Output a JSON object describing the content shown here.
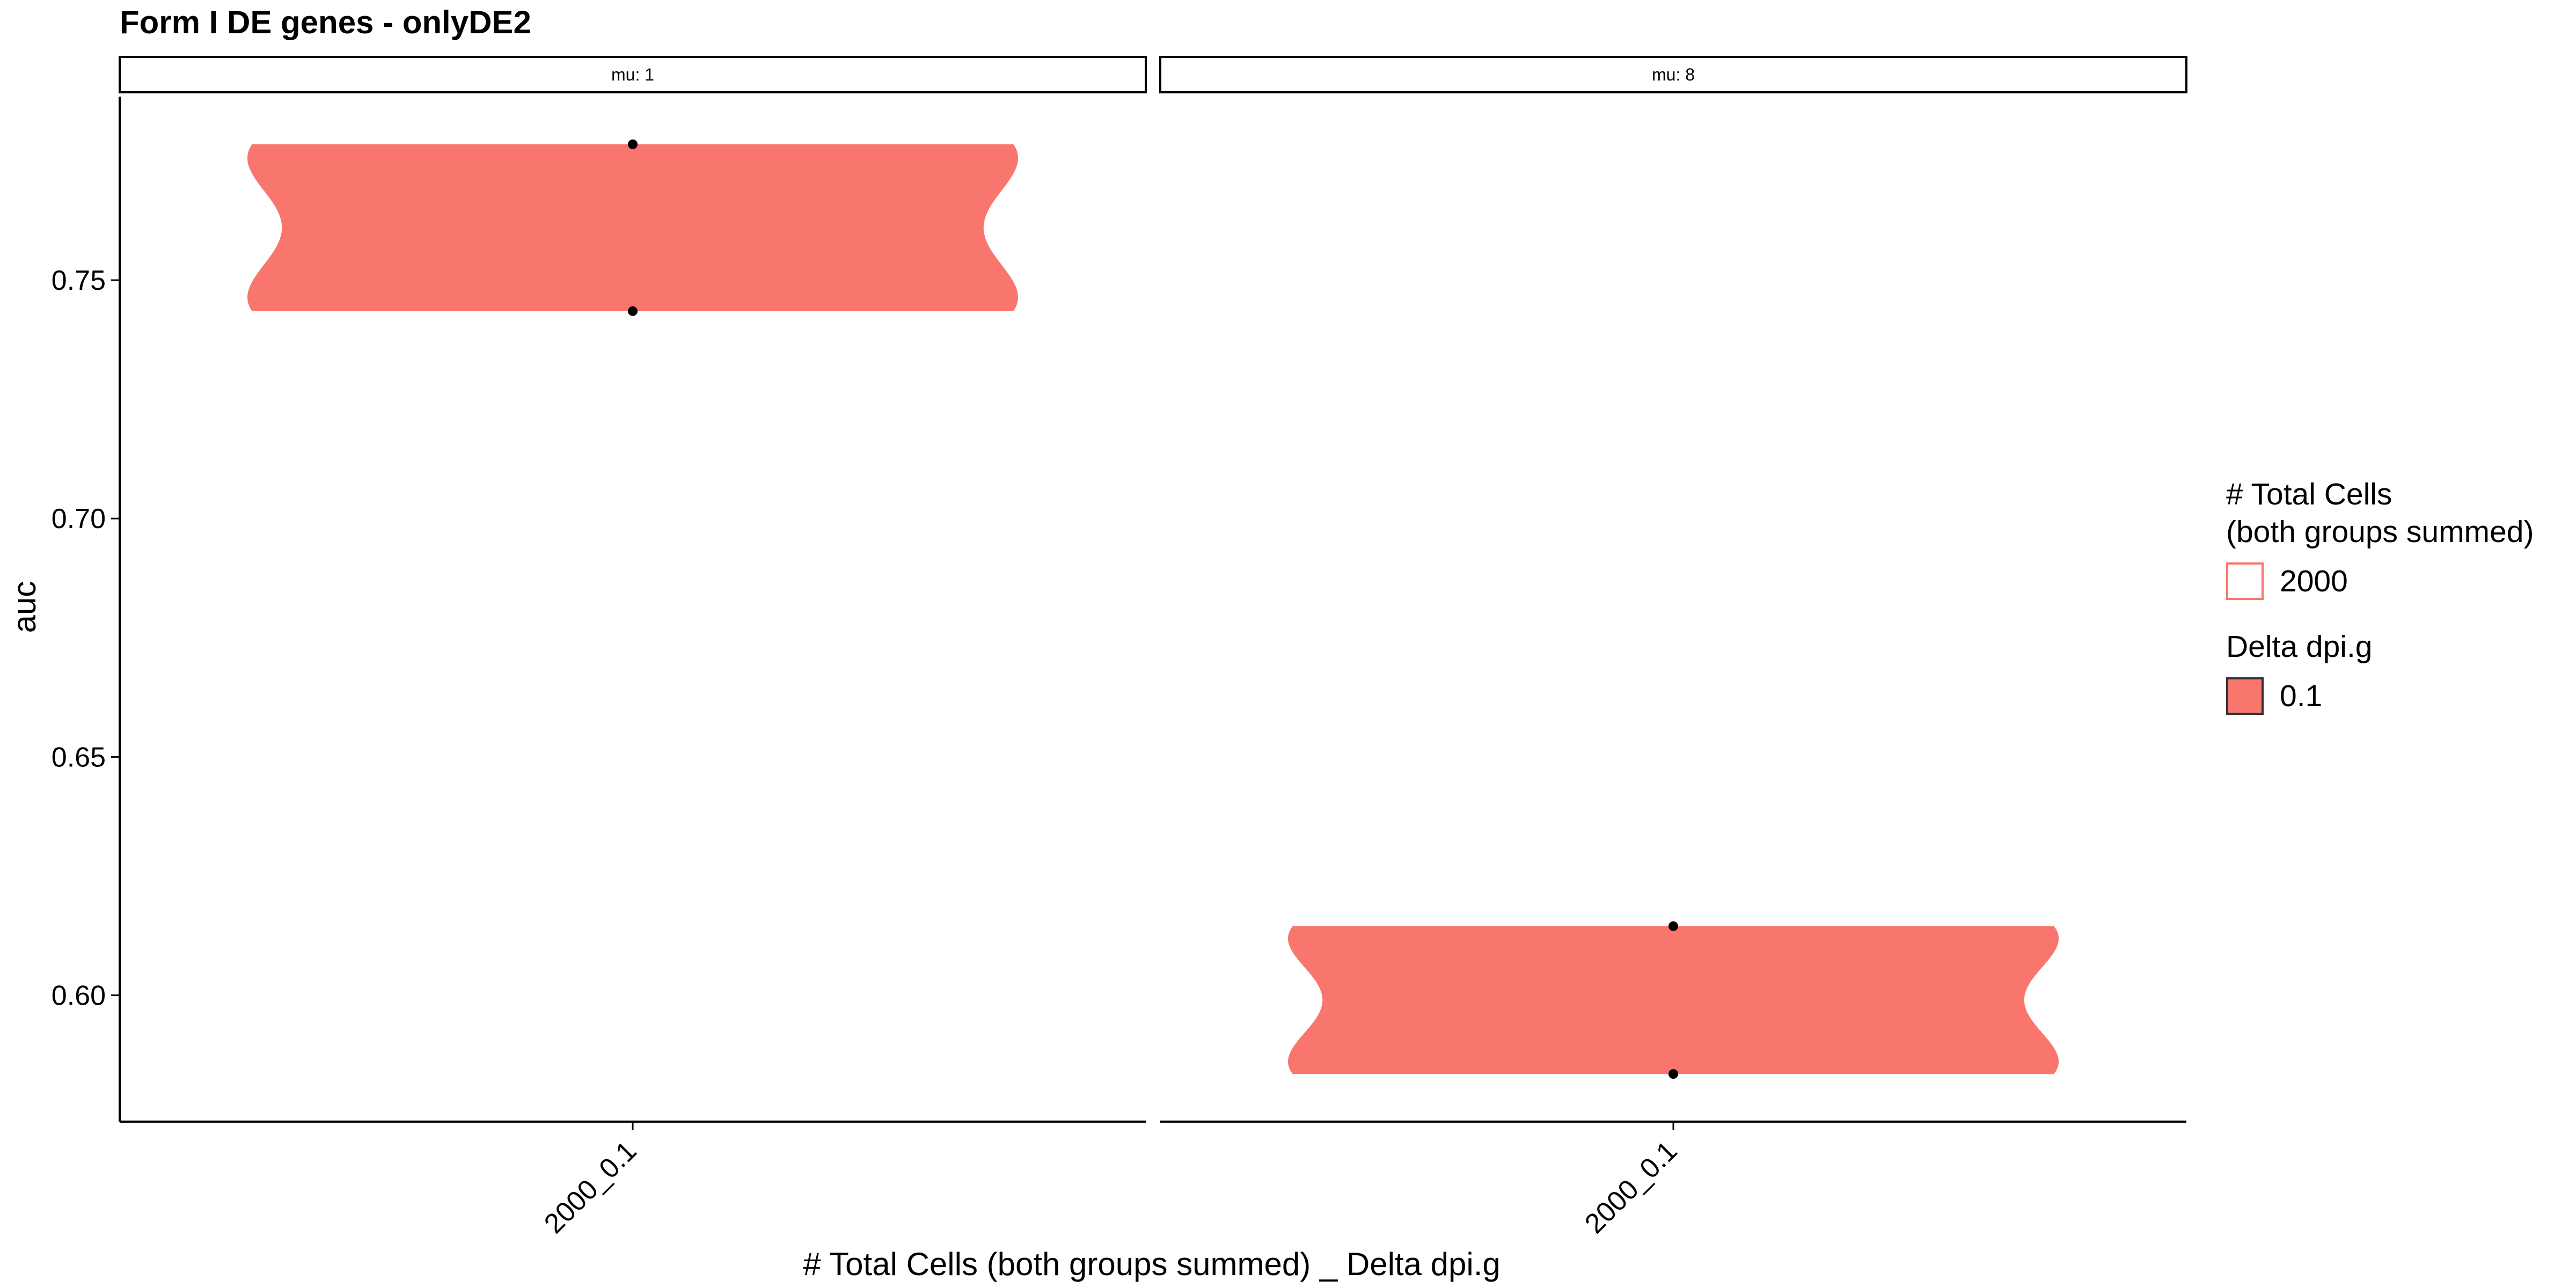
{
  "chart_data": {
    "type": "violin",
    "title": "Form I DE genes - onlyDE2",
    "xlabel": "# Total Cells (both groups summed) _ Delta dpi.g",
    "ylabel": "auc",
    "ylim": [
      0.5735,
      0.7885
    ],
    "yticks": [
      0.6,
      0.65,
      0.7,
      0.75
    ],
    "ytick_labels": [
      "0.60",
      "0.65",
      "0.70",
      "0.75"
    ],
    "grid": false,
    "facets": [
      {
        "label": "mu: 1",
        "category": "2000_0.1",
        "points": [
          0.7435,
          0.7785
        ]
      },
      {
        "label": "mu: 8",
        "category": "2000_0.1",
        "points": [
          0.5835,
          0.6145
        ]
      }
    ],
    "fill_color": "#F8766D",
    "point_color": "#000000",
    "legend": {
      "position": "right",
      "groups": [
        {
          "title": "# Total Cells\n(both groups summed)",
          "title_lines": [
            "# Total Cells",
            "(both groups summed)"
          ],
          "key_style": "outline",
          "items": [
            {
              "label": "2000",
              "color": "#F8766D"
            }
          ]
        },
        {
          "title": "Delta dpi.g",
          "title_lines": [
            "Delta dpi.g"
          ],
          "key_style": "filled",
          "items": [
            {
              "label": "0.1",
              "color": "#F8766D"
            }
          ]
        }
      ]
    }
  }
}
